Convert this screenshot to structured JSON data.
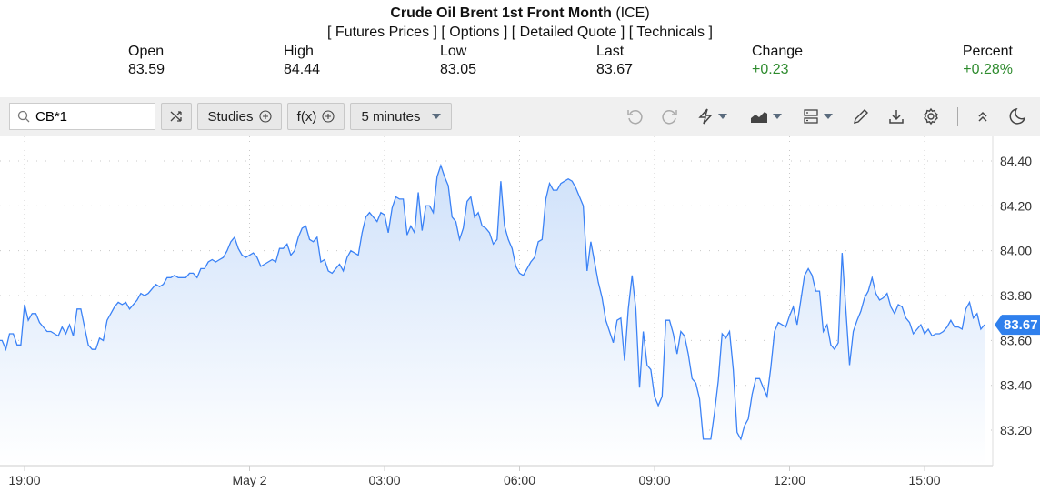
{
  "header": {
    "title": "Crude Oil Brent 1st Front Month",
    "exchange": "(ICE)",
    "links": [
      "[ Futures Prices ]",
      "[ Options ]",
      "[ Detailed Quote ]",
      "[ Technicals ]"
    ],
    "stats": [
      {
        "label": "Open",
        "value": "83.59"
      },
      {
        "label": "High",
        "value": "84.44"
      },
      {
        "label": "Low",
        "value": "83.05"
      },
      {
        "label": "Last",
        "value": "83.67"
      },
      {
        "label": "Change",
        "value": "+0.23"
      },
      {
        "label": "Percent",
        "value": "+0.28%"
      }
    ],
    "positive_color": "#2e8b2e"
  },
  "toolbar": {
    "symbol_value": "CB*1",
    "studies_label": "Studies",
    "fx_label": "f(x)",
    "interval_label": "5 minutes",
    "icons": [
      "search-icon",
      "shuffle-icon",
      "plus-circle-icon",
      "undo-icon",
      "redo-icon",
      "lightning-icon",
      "chart-type-icon",
      "layout-icon",
      "pencil-icon",
      "download-icon",
      "gear-icon",
      "collapse-icon",
      "moon-icon"
    ]
  },
  "chart_data": {
    "type": "area",
    "title": "",
    "x_start": "18:25",
    "x_interval": "5 minutes",
    "x_ticks": [
      "19:00",
      "May 2",
      "03:00",
      "06:00",
      "09:00",
      "12:00",
      "15:00"
    ],
    "y_ticks": [
      "84.40",
      "84.20",
      "84.00",
      "83.80",
      "83.60",
      "83.40",
      "83.20"
    ],
    "ylim": [
      83.05,
      84.45
    ],
    "grid": true,
    "line_color": "#3b82f6",
    "fill_color": "#d6e6fb",
    "last_price": "83.67",
    "values": [
      83.6,
      83.6,
      83.56,
      83.63,
      83.63,
      83.58,
      83.58,
      83.76,
      83.69,
      83.72,
      83.72,
      83.68,
      83.66,
      83.64,
      83.64,
      83.63,
      83.62,
      83.66,
      83.63,
      83.67,
      83.62,
      83.74,
      83.74,
      83.66,
      83.58,
      83.56,
      83.56,
      83.61,
      83.6,
      83.69,
      83.72,
      83.75,
      83.77,
      83.76,
      83.77,
      83.74,
      83.76,
      83.78,
      83.81,
      83.8,
      83.81,
      83.83,
      83.85,
      83.84,
      83.85,
      83.88,
      83.88,
      83.89,
      83.88,
      83.88,
      83.88,
      83.9,
      83.9,
      83.88,
      83.92,
      83.92,
      83.95,
      83.96,
      83.95,
      83.96,
      83.97,
      84.0,
      84.04,
      84.06,
      84.01,
      83.98,
      83.97,
      83.98,
      83.99,
      83.97,
      83.93,
      83.94,
      83.95,
      83.96,
      83.95,
      84.01,
      84.01,
      84.03,
      83.98,
      84.0,
      84.06,
      84.1,
      84.11,
      84.05,
      84.04,
      84.06,
      83.95,
      83.96,
      83.91,
      83.9,
      83.92,
      83.94,
      83.91,
      83.97,
      84.0,
      83.99,
      83.98,
      84.08,
      84.15,
      84.17,
      84.15,
      84.13,
      84.17,
      84.16,
      84.08,
      84.19,
      84.24,
      84.23,
      84.23,
      84.07,
      84.11,
      84.08,
      84.26,
      84.09,
      84.2,
      84.2,
      84.17,
      84.33,
      84.38,
      84.33,
      84.29,
      84.15,
      84.13,
      84.05,
      84.1,
      84.22,
      84.24,
      84.15,
      84.17,
      84.11,
      84.1,
      84.08,
      84.03,
      84.05,
      84.31,
      84.11,
      84.05,
      84.01,
      83.93,
      83.9,
      83.89,
      83.92,
      83.95,
      83.97,
      84.04,
      84.05,
      84.23,
      84.3,
      84.27,
      84.27,
      84.3,
      84.31,
      84.32,
      84.31,
      84.28,
      84.24,
      84.2,
      83.91,
      84.04,
      83.95,
      83.86,
      83.79,
      83.69,
      83.64,
      83.59,
      83.69,
      83.7,
      83.51,
      83.74,
      83.89,
      83.74,
      83.39,
      83.64,
      83.49,
      83.47,
      83.35,
      83.31,
      83.35,
      83.69,
      83.69,
      83.63,
      83.54,
      83.64,
      83.62,
      83.54,
      83.43,
      83.41,
      83.34,
      83.16,
      83.16,
      83.16,
      83.28,
      83.42,
      83.63,
      83.61,
      83.64,
      83.47,
      83.19,
      83.16,
      83.22,
      83.25,
      83.36,
      83.43,
      83.43,
      83.39,
      83.35,
      83.48,
      83.64,
      83.68,
      83.67,
      83.66,
      83.71,
      83.75,
      83.67,
      83.78,
      83.89,
      83.92,
      83.89,
      83.82,
      83.82,
      83.64,
      83.67,
      83.58,
      83.56,
      83.59,
      83.99,
      83.74,
      83.49,
      83.64,
      83.69,
      83.73,
      83.79,
      83.82,
      83.88,
      83.81,
      83.78,
      83.79,
      83.81,
      83.75,
      83.72,
      83.76,
      83.75,
      83.7,
      83.68,
      83.63,
      83.65,
      83.67,
      83.63,
      83.65,
      83.62,
      83.63,
      83.63,
      83.64,
      83.66,
      83.69,
      83.66,
      83.66,
      83.65,
      83.74,
      83.77,
      83.7,
      83.72,
      83.65,
      83.67
    ]
  }
}
